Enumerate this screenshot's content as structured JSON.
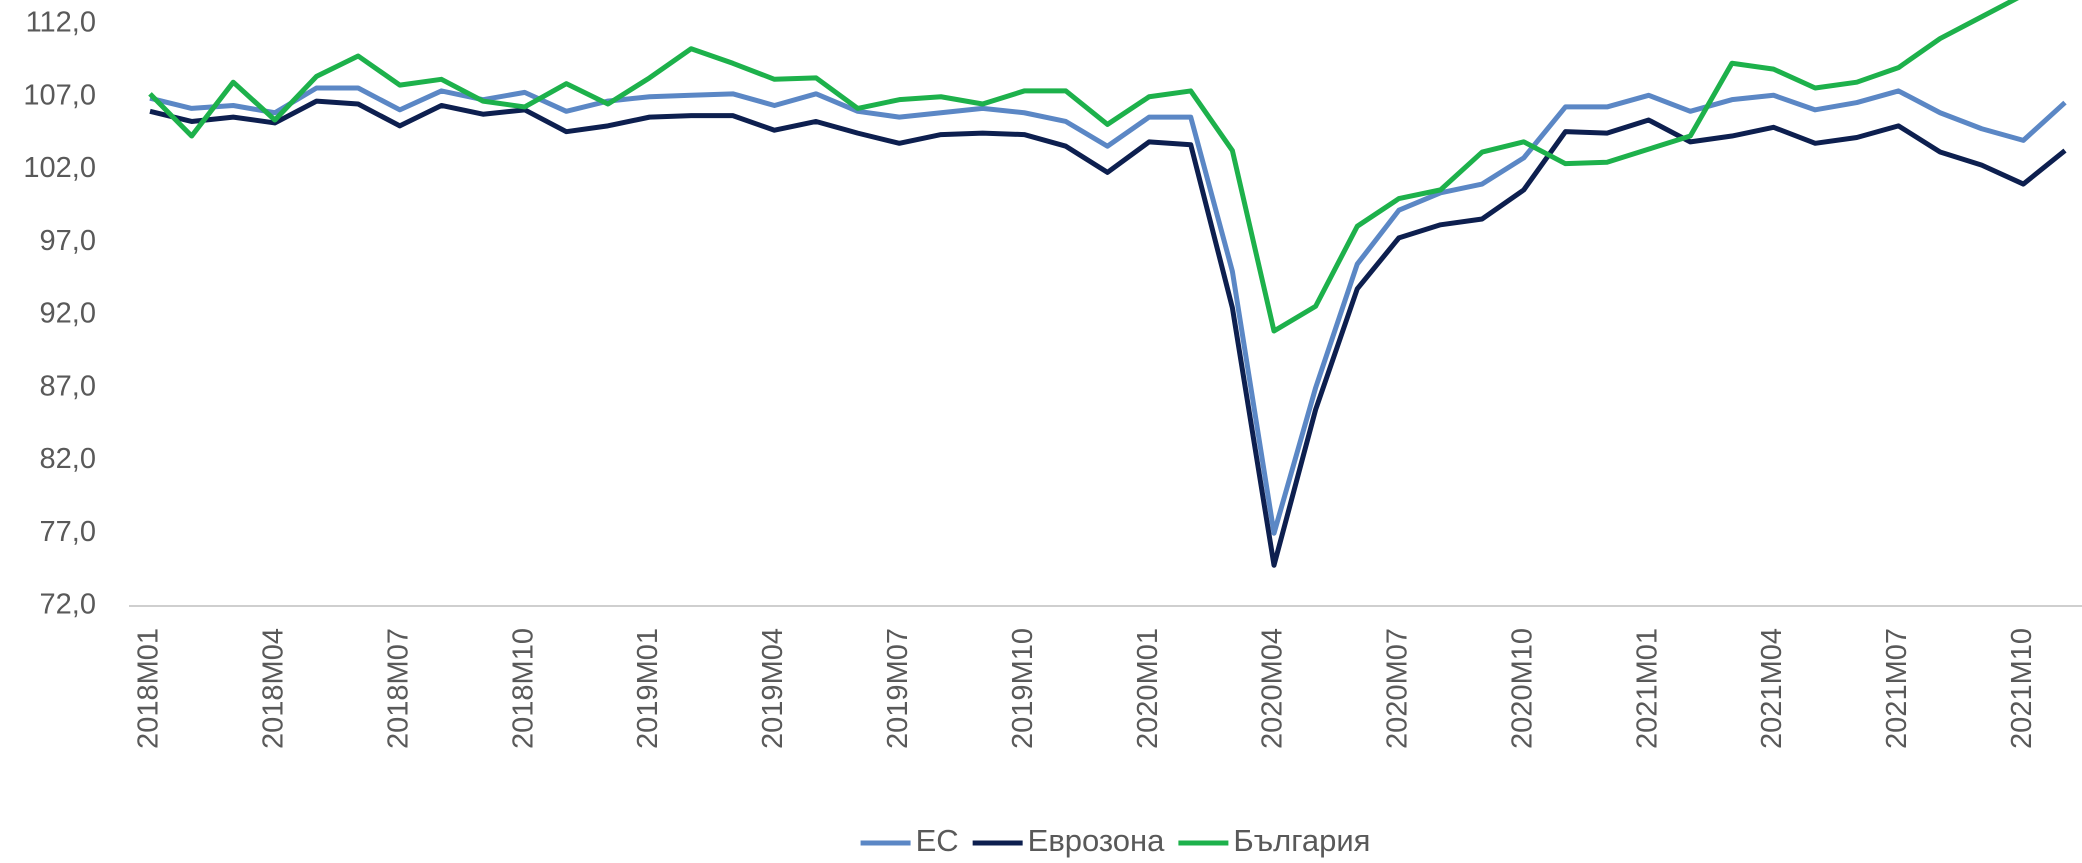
{
  "chart_data": {
    "type": "line",
    "categories": [
      "2018M01",
      null,
      null,
      "2018M04",
      null,
      null,
      "2018M07",
      null,
      null,
      "2018M10",
      null,
      null,
      "2019M01",
      null,
      null,
      "2019M04",
      null,
      null,
      "2019M07",
      null,
      null,
      "2019M10",
      null,
      null,
      "2020M01",
      null,
      null,
      "2020M04",
      null,
      null,
      "2020M07",
      null,
      null,
      "2020M10",
      null,
      null,
      "2021M01",
      null,
      null,
      "2021M04",
      null,
      null,
      "2021M07",
      null,
      null,
      "2021M10",
      null
    ],
    "series": [
      {
        "name": "ЕС",
        "color": "#5b87c5",
        "values": [
          106.9,
          106.2,
          106.4,
          105.9,
          107.6,
          107.6,
          106.1,
          107.4,
          106.8,
          107.3,
          106.0,
          106.7,
          107.0,
          107.1,
          107.2,
          106.4,
          107.2,
          106.0,
          105.6,
          105.9,
          106.2,
          105.9,
          105.3,
          103.6,
          105.6,
          105.6,
          95.0,
          77.0,
          87.0,
          95.5,
          99.2,
          100.4,
          101.0,
          102.8,
          106.3,
          106.3,
          107.1,
          106.0,
          106.8,
          107.1,
          106.1,
          106.6,
          107.4,
          105.9,
          104.8,
          104.0,
          106.6
        ]
      },
      {
        "name": "Еврозона",
        "color": "#0d1f4f",
        "values": [
          106.0,
          105.3,
          105.6,
          105.2,
          106.7,
          106.5,
          105.0,
          106.4,
          105.8,
          106.1,
          104.6,
          105.0,
          105.6,
          105.7,
          105.7,
          104.7,
          105.3,
          104.5,
          103.8,
          104.4,
          104.5,
          104.4,
          103.6,
          101.8,
          103.9,
          103.7,
          92.5,
          74.8,
          85.5,
          93.8,
          97.3,
          98.2,
          98.6,
          100.6,
          104.6,
          104.5,
          105.4,
          103.9,
          104.3,
          104.9,
          103.8,
          104.2,
          105.0,
          103.2,
          102.3,
          101.0,
          103.3
        ]
      },
      {
        "name": "България",
        "color": "#1db14b",
        "values": [
          107.2,
          104.3,
          108.0,
          105.4,
          108.4,
          109.8,
          107.8,
          108.2,
          106.7,
          106.3,
          107.9,
          106.5,
          108.3,
          110.3,
          109.3,
          108.2,
          108.3,
          106.2,
          106.8,
          107.0,
          106.5,
          107.4,
          107.4,
          105.1,
          107.0,
          107.4,
          103.3,
          90.9,
          92.6,
          98.1,
          100.0,
          100.6,
          103.2,
          103.9,
          102.4,
          102.5,
          103.4,
          104.3,
          109.3,
          108.9,
          107.6,
          108.0,
          109.0,
          111.0,
          112.5,
          114.0,
          115.2
        ]
      }
    ],
    "ylim": [
      72,
      112
    ],
    "yticks": [
      {
        "value": 72,
        "label": "72,0"
      },
      {
        "value": 77,
        "label": "77,0"
      },
      {
        "value": 82,
        "label": "82,0"
      },
      {
        "value": 87,
        "label": "87,0"
      },
      {
        "value": 92,
        "label": "92,0"
      },
      {
        "value": 97,
        "label": "97,0"
      },
      {
        "value": 102,
        "label": "102,0"
      },
      {
        "value": 107,
        "label": "107,0"
      },
      {
        "value": 112,
        "label": "112,0"
      }
    ],
    "grid": false,
    "legend": "bottom"
  }
}
